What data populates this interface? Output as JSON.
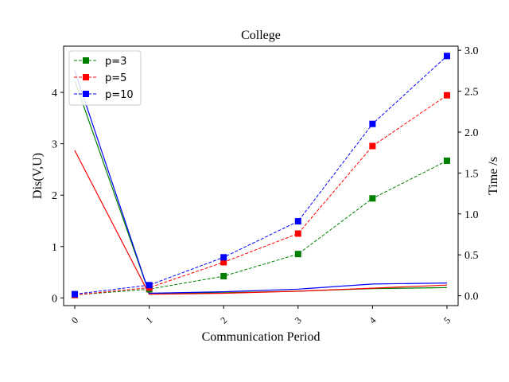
{
  "chart_data": {
    "type": "line",
    "title": "College",
    "xlabel": "Communication Period",
    "ylabel": "Dis(V,U)",
    "y2label": "Time /s",
    "x": [
      0,
      1,
      2,
      3,
      4,
      5
    ],
    "x_tick_labels": [
      "0",
      "1",
      "2",
      "3",
      "4",
      "5"
    ],
    "xlim": [
      -0.15,
      5.15
    ],
    "ylim": [
      -0.15,
      4.9
    ],
    "y_ticks": [
      0,
      1,
      2,
      3,
      4
    ],
    "y_tick_labels": [
      "0",
      "1",
      "2",
      "3",
      "4"
    ],
    "y2lim": [
      -0.12,
      3.05
    ],
    "y2_ticks": [
      0.0,
      0.5,
      1.0,
      1.5,
      2.0,
      2.5,
      3.0
    ],
    "y2_tick_labels": [
      "0.0",
      "0.5",
      "1.0",
      "1.5",
      "2.0",
      "2.5",
      "3.0"
    ],
    "grid": false,
    "legend_position": "top-left",
    "dis_series": [
      {
        "key": "p3",
        "axis": "left",
        "color": "#008000",
        "values": [
          4.23,
          0.09,
          0.1,
          0.13,
          0.18,
          0.2
        ]
      },
      {
        "key": "p5",
        "axis": "left",
        "color": "#ff0000",
        "values": [
          2.87,
          0.07,
          0.09,
          0.13,
          0.19,
          0.25
        ]
      },
      {
        "key": "p10",
        "axis": "left",
        "color": "#0000ff",
        "values": [
          4.42,
          0.09,
          0.12,
          0.17,
          0.27,
          0.29
        ]
      }
    ],
    "time_series": [
      {
        "name": "p=3",
        "axis": "right",
        "color": "#008000",
        "marker": "square",
        "linestyle": "dashed",
        "values": [
          0.01,
          0.08,
          0.24,
          0.51,
          1.19,
          1.65
        ]
      },
      {
        "name": "p=5",
        "axis": "right",
        "color": "#ff0000",
        "marker": "square",
        "linestyle": "dashed",
        "values": [
          0.01,
          0.1,
          0.41,
          0.76,
          1.83,
          2.45
        ]
      },
      {
        "name": "p=10",
        "axis": "right",
        "color": "#0000ff",
        "marker": "square",
        "linestyle": "dashed",
        "values": [
          0.02,
          0.13,
          0.47,
          0.91,
          2.1,
          2.93
        ]
      }
    ]
  }
}
